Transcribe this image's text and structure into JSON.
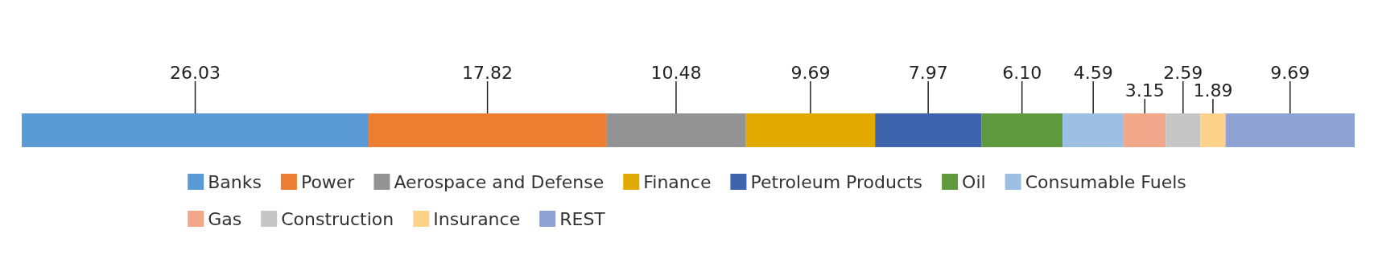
{
  "chart_data": {
    "type": "bar",
    "orientation": "horizontal",
    "stacked": true,
    "categories": [
      null
    ],
    "xlim": [
      0,
      100
    ],
    "tick_labels": false,
    "data_labels": true,
    "legend": "bottom",
    "series": [
      {
        "name": "Banks",
        "color": "#5b9bd5",
        "values": [
          26.03
        ]
      },
      {
        "name": "Power",
        "color": "#ed7d31",
        "values": [
          17.82
        ]
      },
      {
        "name": "Aerospace and Defense",
        "color": "#939393",
        "values": [
          10.48
        ]
      },
      {
        "name": "Finance",
        "color": "#e2a900",
        "values": [
          9.69
        ]
      },
      {
        "name": "Petroleum Products",
        "color": "#3d64ad",
        "values": [
          7.97
        ]
      },
      {
        "name": "Oil",
        "color": "#5f9a3e",
        "values": [
          6.1
        ],
        "value_labels": [
          "6.10"
        ]
      },
      {
        "name": "Consumable Fuels",
        "color": "#9dbfe3",
        "values": [
          4.59
        ]
      },
      {
        "name": "Gas",
        "color": "#f0a78a",
        "values": [
          3.15
        ]
      },
      {
        "name": "Construction",
        "color": "#c6c6c6",
        "values": [
          2.59
        ]
      },
      {
        "name": "Insurance",
        "color": "#ffd28a",
        "values": [
          1.89
        ]
      },
      {
        "name": "REST",
        "color": "#8fa2d4",
        "values": [
          9.69
        ]
      }
    ]
  }
}
